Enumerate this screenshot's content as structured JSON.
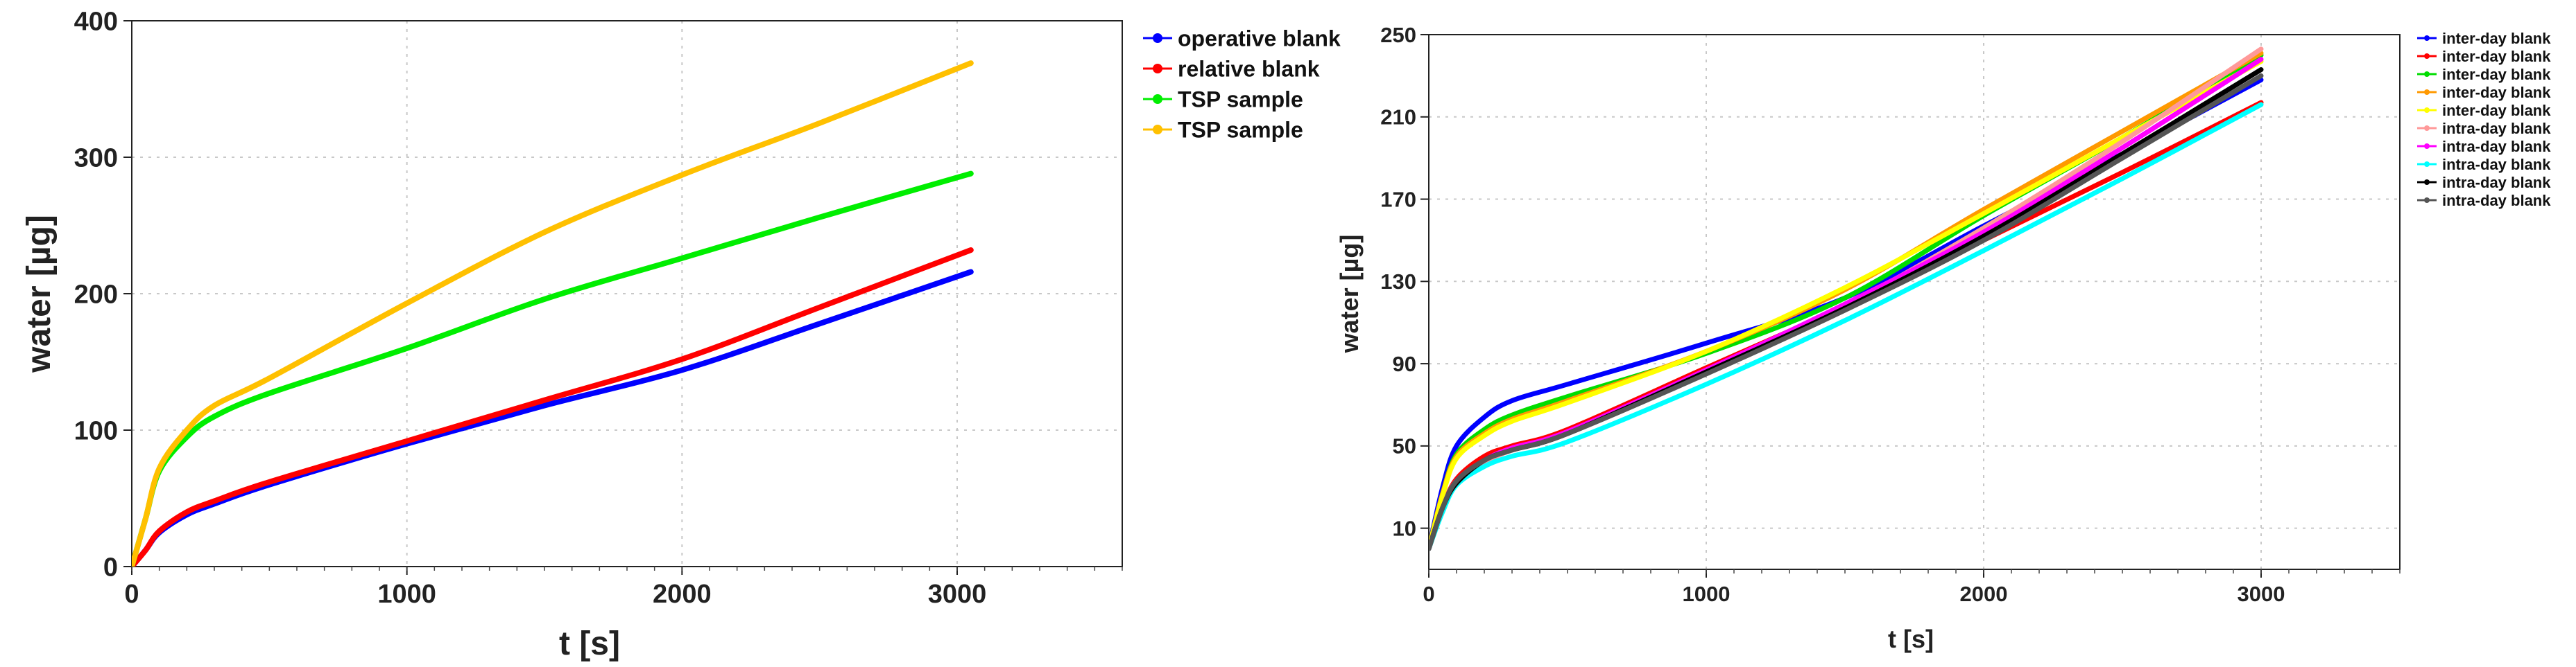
{
  "chart_data": [
    {
      "type": "line",
      "xlabel": "t [s]",
      "ylabel": "water [µg]",
      "xlim": [
        0,
        3600
      ],
      "ylim": [
        0,
        400
      ],
      "xticks": [
        0,
        1000,
        2000,
        3000
      ],
      "xtick_labels": [
        "0",
        "1000",
        "2000",
        "3000"
      ],
      "yticks": [
        0,
        100,
        200,
        300,
        400
      ],
      "ytick_labels": [
        "0",
        "100",
        "200",
        "300",
        "400"
      ],
      "grid": true,
      "legend_position": "right",
      "x": [
        0,
        50,
        100,
        200,
        300,
        500,
        1000,
        1500,
        2000,
        2500,
        3050
      ],
      "series": [
        {
          "name": "operative blank",
          "color": "#0000ff",
          "values": [
            0,
            12,
            25,
            38,
            46,
            60,
            90,
            118,
            144,
            178,
            216
          ]
        },
        {
          "name": "relative blank",
          "color": "#ff0000",
          "values": [
            0,
            12,
            26,
            40,
            48,
            62,
            92,
            122,
            152,
            190,
            232
          ]
        },
        {
          "name": "TSP sample",
          "color": "#00ee00",
          "values": [
            0,
            35,
            70,
            95,
            110,
            127,
            160,
            196,
            226,
            256,
            288
          ]
        },
        {
          "name": "TSP sample",
          "color": "#ffc000",
          "values": [
            0,
            35,
            72,
            100,
            118,
            138,
            193,
            245,
            287,
            325,
            369
          ]
        }
      ]
    },
    {
      "type": "line",
      "xlabel": "t [s]",
      "ylabel": "water [µg]",
      "xlim": [
        0,
        3500
      ],
      "ylim": [
        -10,
        250
      ],
      "xticks": [
        0,
        1000,
        2000,
        3000
      ],
      "xtick_labels": [
        "0",
        "1000",
        "2000",
        "3000"
      ],
      "yticks": [
        10,
        50,
        90,
        130,
        170,
        210,
        250
      ],
      "ytick_labels": [
        "10",
        "50",
        "90",
        "130",
        "170",
        "210",
        "250"
      ],
      "grid": true,
      "legend_position": "right",
      "x": [
        0,
        50,
        100,
        200,
        300,
        500,
        1000,
        1500,
        2000,
        2500,
        3000
      ],
      "series": [
        {
          "name": "inter-day blank",
          "color": "#0000ff",
          "values": [
            0,
            30,
            50,
            64,
            72,
            80,
            100,
            122,
            157,
            192,
            228
          ]
        },
        {
          "name": "inter-day blank",
          "color": "#ff0000",
          "values": [
            0,
            20,
            34,
            45,
            50,
            58,
            88,
            118,
            150,
            183,
            217
          ]
        },
        {
          "name": "inter-day blank",
          "color": "#00dd00",
          "values": [
            0,
            27,
            46,
            58,
            65,
            74,
            95,
            122,
            162,
            200,
            240
          ]
        },
        {
          "name": "inter-day blank",
          "color": "#ff9900",
          "values": [
            0,
            27,
            45,
            56,
            63,
            72,
            96,
            126,
            165,
            203,
            241
          ]
        },
        {
          "name": "inter-day blank",
          "color": "#ffff00",
          "values": [
            0,
            26,
            44,
            55,
            62,
            71,
            96,
            127,
            163,
            200,
            237
          ]
        },
        {
          "name": "intra-day blank",
          "color": "#ff9999",
          "values": [
            0,
            20,
            33,
            42,
            48,
            56,
            86,
            118,
            156,
            198,
            243
          ]
        },
        {
          "name": "intra-day blank",
          "color": "#ff00ff",
          "values": [
            0,
            20,
            33,
            43,
            49,
            57,
            87,
            119,
            154,
            195,
            238
          ]
        },
        {
          "name": "intra-day blank",
          "color": "#00ffff",
          "values": [
            0,
            18,
            31,
            40,
            45,
            52,
            80,
            111,
            145,
            180,
            216
          ]
        },
        {
          "name": "intra-day blank",
          "color": "#000000",
          "values": [
            0,
            20,
            32,
            43,
            48,
            56,
            86,
            117,
            152,
            192,
            233
          ]
        },
        {
          "name": "intra-day blank",
          "color": "#555555",
          "values": [
            0,
            20,
            33,
            43,
            48,
            56,
            85,
            116,
            150,
            190,
            230
          ]
        }
      ]
    }
  ]
}
